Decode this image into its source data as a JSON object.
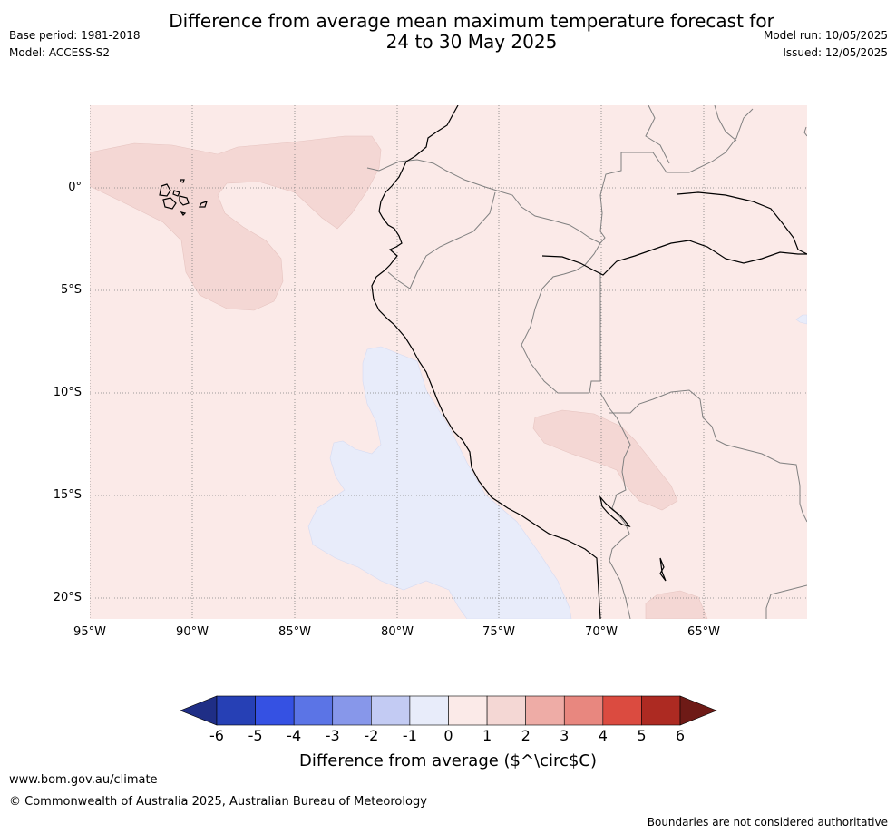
{
  "header": {
    "title_line1": "Difference from average mean maximum temperature forecast for",
    "title_line2": "24 to 30 May 2025",
    "base_period": "Base period: 1981-2018",
    "model": "Model: ACCESS-S2",
    "model_run": "Model run: 10/05/2025",
    "issued": "Issued: 12/05/2025"
  },
  "map": {
    "lat_labels": [
      "0°",
      "5°S",
      "10°S",
      "15°S",
      "20°S"
    ],
    "lon_labels": [
      "95°W",
      "90°W",
      "85°W",
      "80°W",
      "75°W",
      "70°W",
      "65°W"
    ],
    "colors": {
      "background_0_to_1": "#fbeae8",
      "anomaly_1_to_2": "#f4d7d4",
      "anomaly_minus1_to_0": "#e8ecfa",
      "coastline": "#000000",
      "borders": "#808080",
      "gridlines": "#808080"
    }
  },
  "colorbar": {
    "ticks": [
      "-6",
      "-5",
      "-4",
      "-3",
      "-2",
      "-1",
      "0",
      "1",
      "2",
      "3",
      "4",
      "5",
      "6"
    ],
    "colors": [
      "#1f2e86",
      "#2640b5",
      "#3551e3",
      "#5b74e6",
      "#8797ea",
      "#c3cbf3",
      "#e8ecfa",
      "#fbeae8",
      "#f4d7d4",
      "#eeaca6",
      "#e8877f",
      "#db4b40",
      "#ad2a22",
      "#6e1a16"
    ],
    "title": "Difference from average ($^\\circ$C)"
  },
  "footer": {
    "website": "www.bom.gov.au/climate",
    "copyright": "© Commonwealth of Australia 2025, Australian Bureau of Meteorology",
    "disclaimer": "Boundaries are not considered authoritative"
  }
}
